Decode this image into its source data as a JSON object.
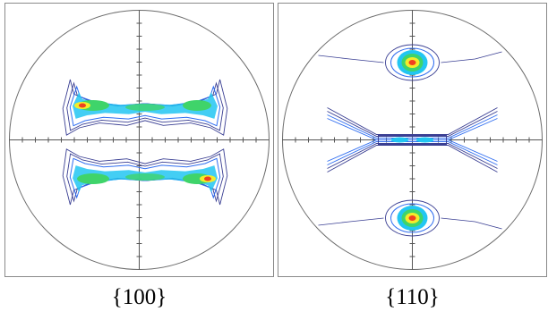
{
  "figures": [
    {
      "label": "{100}"
    },
    {
      "label": "{110}"
    }
  ],
  "colors": {
    "circle": "#6b6b6b",
    "axes": "#555555",
    "contour_outer": "#3a3f93",
    "contour_blue": "#2f6df0",
    "contour_cyan": "#22c6f2",
    "contour_green": "#3fd46a",
    "contour_yellow": "#f4ec2a",
    "contour_red": "#f04020"
  }
}
